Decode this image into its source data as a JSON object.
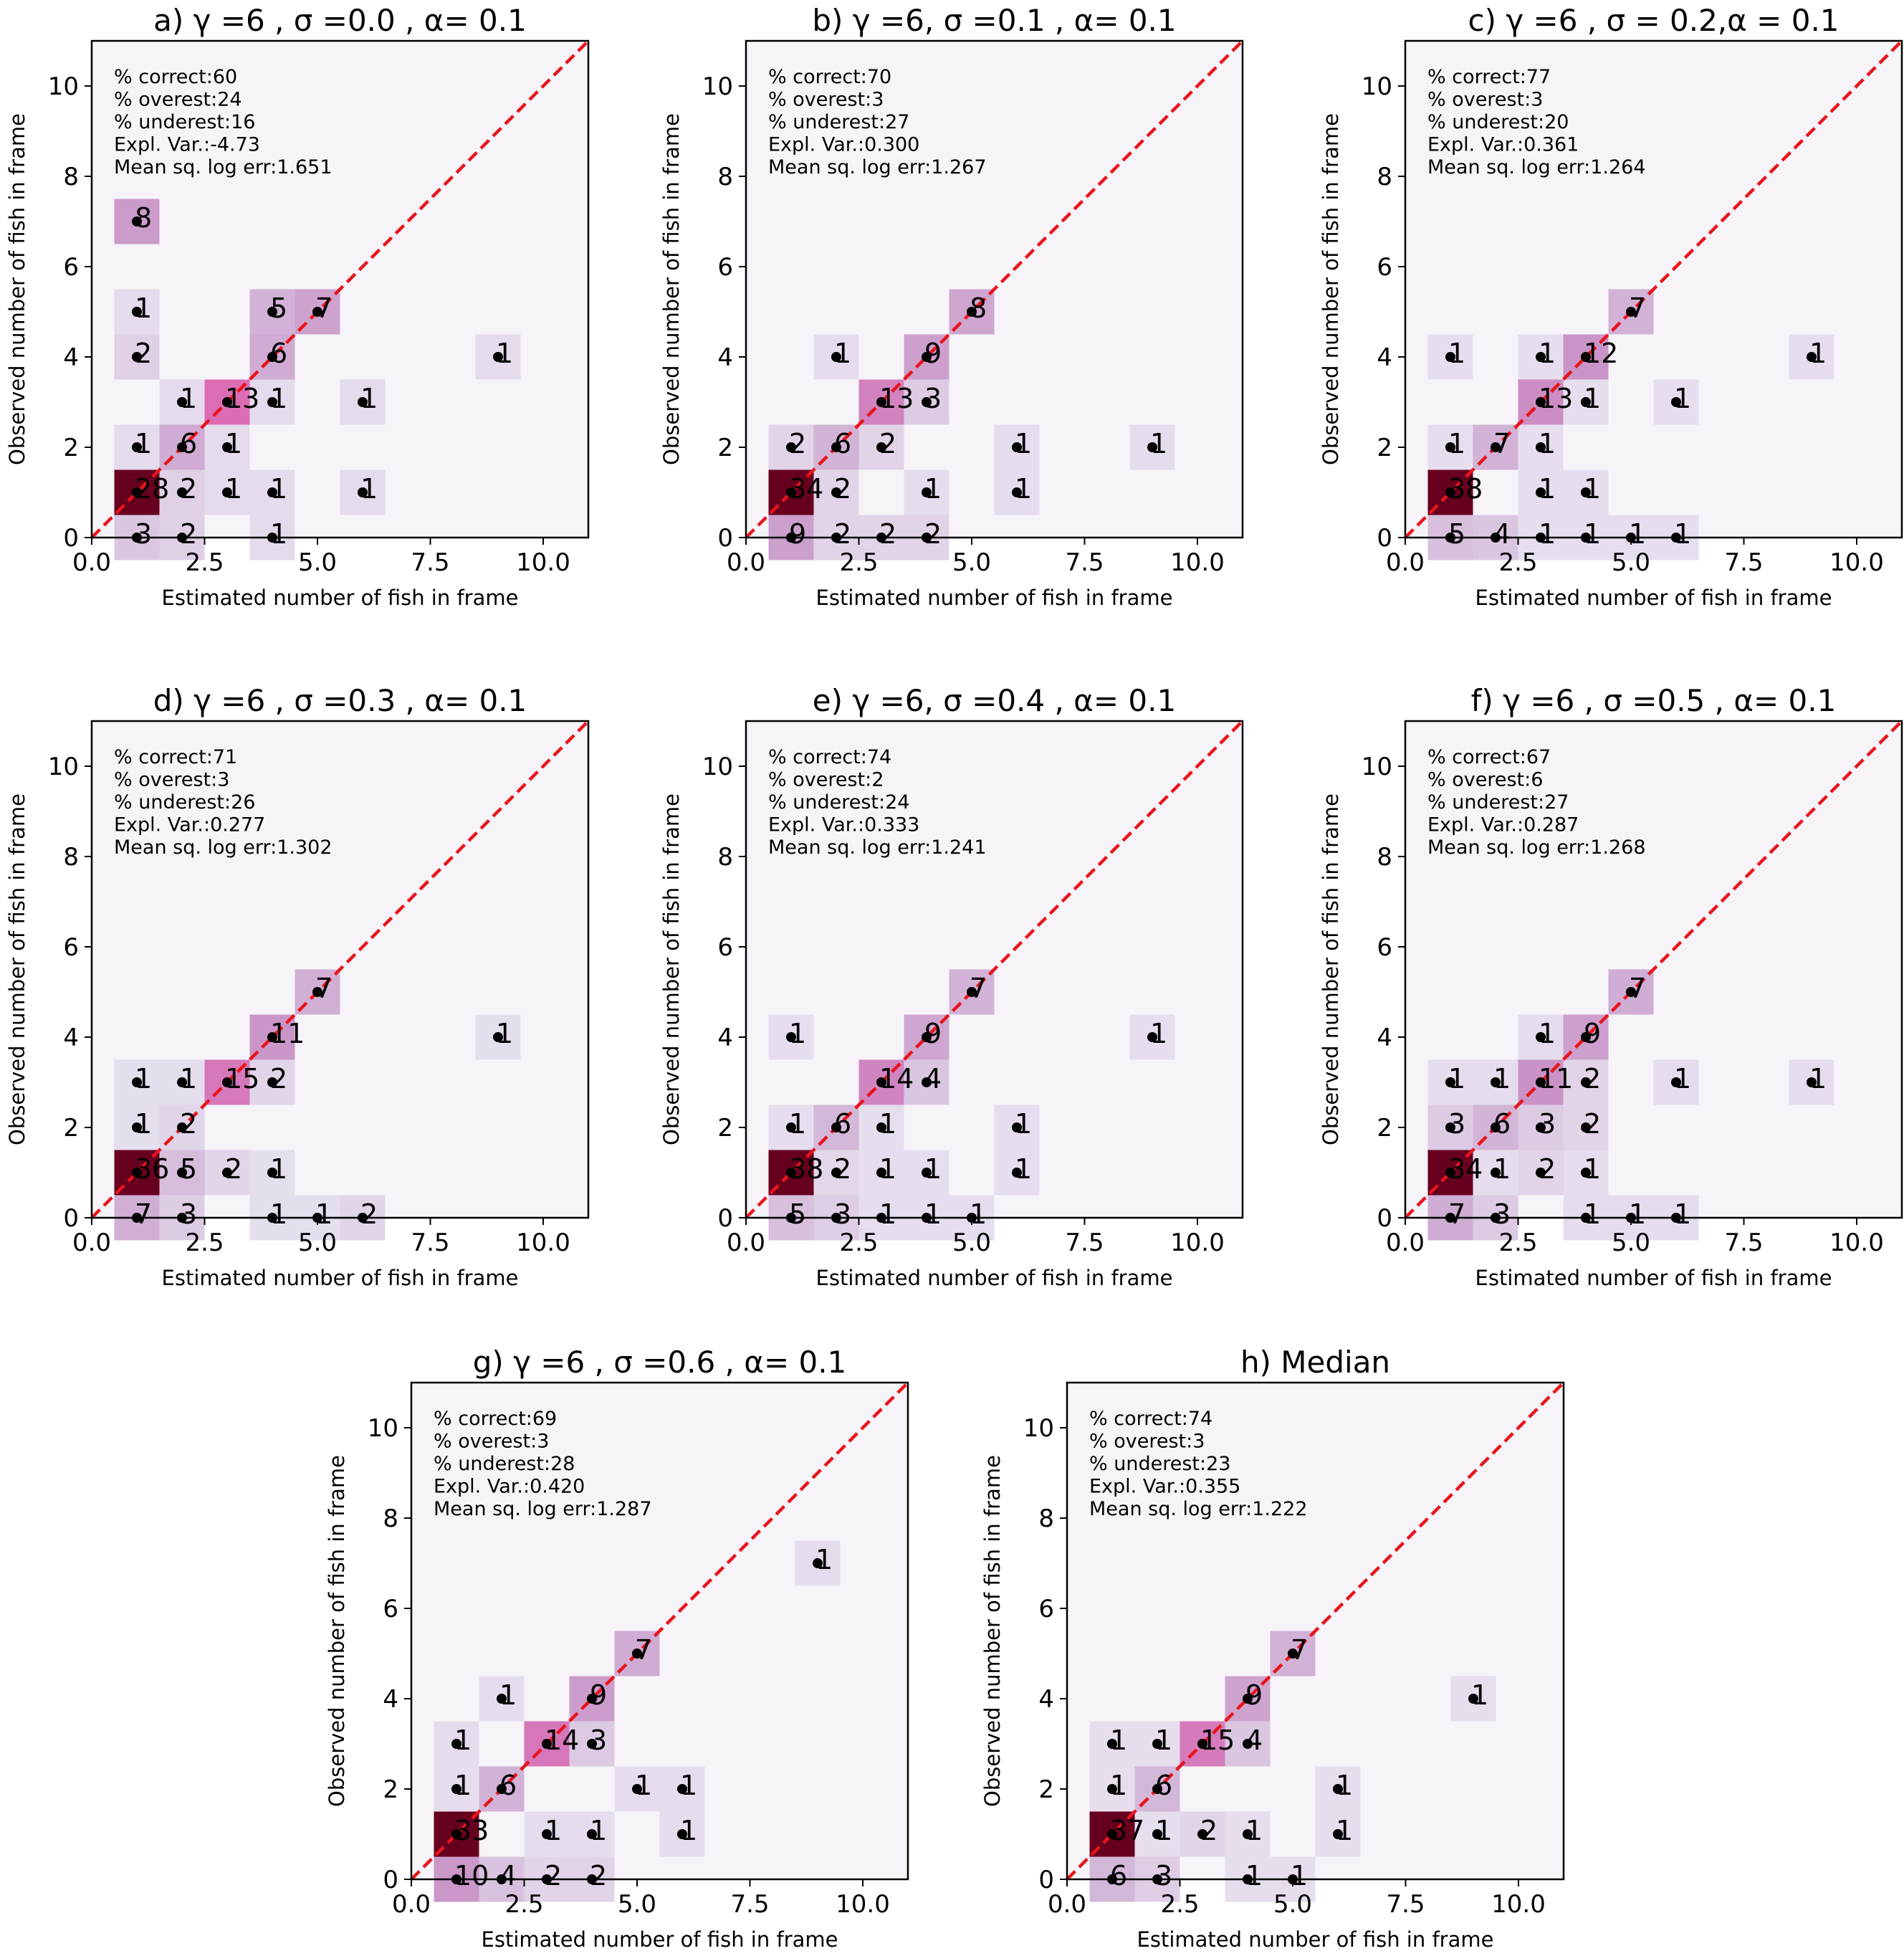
{
  "chart_data": [
    {
      "type": "heatmap",
      "title": "a) γ =6 , σ =0.0 , α= 0.1",
      "xlabel": "Estimated number of fish in frame",
      "ylabel": "Observed number of fish in frame",
      "xlim": [
        0,
        11
      ],
      "ylim": [
        0,
        11
      ],
      "xticks": [
        "0.0",
        "2.5",
        "5.0",
        "7.5",
        "10.0"
      ],
      "yticks": [
        "0",
        "2",
        "4",
        "6",
        "8",
        "10"
      ],
      "reference_line": "y = x",
      "stats": [
        "% correct:60",
        "% overest:24",
        "% underest:16",
        "Expl. Var.:-4.73",
        "Mean sq. log err:1.651"
      ],
      "cells": [
        [
          1,
          1,
          28
        ],
        [
          2,
          1,
          2
        ],
        [
          3,
          1,
          1
        ],
        [
          4,
          1,
          1
        ],
        [
          6,
          1,
          1
        ],
        [
          1,
          0,
          3
        ],
        [
          2,
          0,
          2
        ],
        [
          4,
          0,
          1
        ],
        [
          1,
          2,
          1
        ],
        [
          2,
          2,
          6
        ],
        [
          3,
          2,
          1
        ],
        [
          2,
          3,
          1
        ],
        [
          3,
          3,
          13
        ],
        [
          4,
          3,
          1
        ],
        [
          6,
          3,
          1
        ],
        [
          1,
          4,
          2
        ],
        [
          4,
          4,
          6
        ],
        [
          9,
          4,
          1
        ],
        [
          1,
          5,
          1
        ],
        [
          4,
          5,
          5
        ],
        [
          5,
          5,
          7
        ],
        [
          1,
          7,
          8
        ]
      ]
    },
    {
      "type": "heatmap",
      "title": "b) γ =6, σ =0.1 , α= 0.1",
      "xlabel": "Estimated number of fish in frame",
      "ylabel": "Observed number of fish in frame",
      "xlim": [
        0,
        11
      ],
      "ylim": [
        0,
        11
      ],
      "xticks": [
        "0.0",
        "2.5",
        "5.0",
        "7.5",
        "10.0"
      ],
      "yticks": [
        "0",
        "2",
        "4",
        "6",
        "8",
        "10"
      ],
      "reference_line": "y = x",
      "stats": [
        "% correct:70",
        "% overest:3",
        "% underest:27",
        "Expl. Var.:0.300",
        "Mean sq. log err:1.267"
      ],
      "cells": [
        [
          1,
          1,
          34
        ],
        [
          2,
          1,
          2
        ],
        [
          4,
          1,
          1
        ],
        [
          6,
          1,
          1
        ],
        [
          1,
          0,
          9
        ],
        [
          2,
          0,
          2
        ],
        [
          3,
          0,
          2
        ],
        [
          4,
          0,
          2
        ],
        [
          1,
          2,
          2
        ],
        [
          2,
          2,
          6
        ],
        [
          3,
          2,
          2
        ],
        [
          6,
          2,
          1
        ],
        [
          9,
          2,
          1
        ],
        [
          3,
          3,
          13
        ],
        [
          4,
          3,
          3
        ],
        [
          2,
          4,
          1
        ],
        [
          4,
          4,
          9
        ],
        [
          5,
          5,
          8
        ]
      ]
    },
    {
      "type": "heatmap",
      "title": "c) γ =6 , σ = 0.2,α = 0.1",
      "xlabel": "Estimated number of fish in frame",
      "ylabel": "Observed number of fish in frame",
      "xlim": [
        0,
        11
      ],
      "ylim": [
        0,
        11
      ],
      "xticks": [
        "0.0",
        "2.5",
        "5.0",
        "7.5",
        "10.0"
      ],
      "yticks": [
        "0",
        "2",
        "4",
        "6",
        "8",
        "10"
      ],
      "reference_line": "y = x",
      "stats": [
        "% correct:77",
        "% overest:3",
        "% underest:20",
        "Expl. Var.:0.361",
        "Mean sq. log err:1.264"
      ],
      "cells": [
        [
          1,
          1,
          38
        ],
        [
          3,
          1,
          1
        ],
        [
          4,
          1,
          1
        ],
        [
          1,
          0,
          5
        ],
        [
          2,
          0,
          4
        ],
        [
          3,
          0,
          1
        ],
        [
          4,
          0,
          1
        ],
        [
          5,
          0,
          1
        ],
        [
          6,
          0,
          1
        ],
        [
          1,
          2,
          1
        ],
        [
          2,
          2,
          7
        ],
        [
          3,
          2,
          1
        ],
        [
          3,
          3,
          13
        ],
        [
          4,
          3,
          1
        ],
        [
          6,
          3,
          1
        ],
        [
          1,
          4,
          1
        ],
        [
          3,
          4,
          1
        ],
        [
          4,
          4,
          12
        ],
        [
          9,
          4,
          1
        ],
        [
          5,
          5,
          7
        ]
      ]
    },
    {
      "type": "heatmap",
      "title": "d) γ =6 , σ =0.3 , α= 0.1",
      "xlabel": "Estimated number of fish in frame",
      "ylabel": "Observed number of fish in frame",
      "xlim": [
        0,
        11
      ],
      "ylim": [
        0,
        11
      ],
      "xticks": [
        "0.0",
        "2.5",
        "5.0",
        "7.5",
        "10.0"
      ],
      "yticks": [
        "0",
        "2",
        "4",
        "6",
        "8",
        "10"
      ],
      "reference_line": "y = x",
      "stats": [
        "% correct:71",
        "% overest:3",
        "% underest:26",
        "Expl. Var.:0.277",
        "Mean sq. log err:1.302"
      ],
      "cells": [
        [
          1,
          1,
          36
        ],
        [
          2,
          1,
          5
        ],
        [
          3,
          1,
          2
        ],
        [
          4,
          1,
          1
        ],
        [
          1,
          0,
          7
        ],
        [
          2,
          0,
          3
        ],
        [
          4,
          0,
          1
        ],
        [
          5,
          0,
          1
        ],
        [
          6,
          0,
          2
        ],
        [
          1,
          2,
          1
        ],
        [
          2,
          2,
          2
        ],
        [
          1,
          3,
          1
        ],
        [
          2,
          3,
          1
        ],
        [
          3,
          3,
          15
        ],
        [
          4,
          3,
          2
        ],
        [
          4,
          4,
          11
        ],
        [
          9,
          4,
          1
        ],
        [
          5,
          5,
          7
        ]
      ]
    },
    {
      "type": "heatmap",
      "title": "e) γ =6, σ =0.4 , α= 0.1",
      "xlabel": "Estimated number of fish in frame",
      "ylabel": "Observed number of fish in frame",
      "xlim": [
        0,
        11
      ],
      "ylim": [
        0,
        11
      ],
      "xticks": [
        "0.0",
        "2.5",
        "5.0",
        "7.5",
        "10.0"
      ],
      "yticks": [
        "0",
        "2",
        "4",
        "6",
        "8",
        "10"
      ],
      "reference_line": "y = x",
      "stats": [
        "% correct:74",
        "% overest:2",
        "% underest:24",
        "Expl. Var.:0.333",
        "Mean sq. log err:1.241"
      ],
      "cells": [
        [
          1,
          1,
          38
        ],
        [
          2,
          1,
          2
        ],
        [
          3,
          1,
          1
        ],
        [
          4,
          1,
          1
        ],
        [
          6,
          1,
          1
        ],
        [
          1,
          0,
          5
        ],
        [
          2,
          0,
          3
        ],
        [
          3,
          0,
          1
        ],
        [
          4,
          0,
          1
        ],
        [
          5,
          0,
          1
        ],
        [
          1,
          2,
          1
        ],
        [
          2,
          2,
          6
        ],
        [
          3,
          2,
          1
        ],
        [
          6,
          2,
          1
        ],
        [
          3,
          3,
          14
        ],
        [
          4,
          3,
          4
        ],
        [
          1,
          4,
          1
        ],
        [
          4,
          4,
          9
        ],
        [
          9,
          4,
          1
        ],
        [
          5,
          5,
          7
        ]
      ]
    },
    {
      "type": "heatmap",
      "title": "f) γ =6 , σ =0.5 , α= 0.1",
      "xlabel": "Estimated number of fish in frame",
      "ylabel": "Observed number of fish in frame",
      "xlim": [
        0,
        11
      ],
      "ylim": [
        0,
        11
      ],
      "xticks": [
        "0.0",
        "2.5",
        "5.0",
        "7.5",
        "10.0"
      ],
      "yticks": [
        "0",
        "2",
        "4",
        "6",
        "8",
        "10"
      ],
      "reference_line": "y = x",
      "stats": [
        "% correct:67",
        "% overest:6",
        "% underest:27",
        "Expl. Var.:0.287",
        "Mean sq. log err:1.268"
      ],
      "cells": [
        [
          1,
          1,
          34
        ],
        [
          2,
          1,
          1
        ],
        [
          3,
          1,
          2
        ],
        [
          4,
          1,
          1
        ],
        [
          1,
          0,
          7
        ],
        [
          2,
          0,
          3
        ],
        [
          4,
          0,
          1
        ],
        [
          5,
          0,
          1
        ],
        [
          6,
          0,
          1
        ],
        [
          1,
          2,
          3
        ],
        [
          2,
          2,
          6
        ],
        [
          3,
          2,
          3
        ],
        [
          4,
          2,
          2
        ],
        [
          1,
          3,
          1
        ],
        [
          2,
          3,
          1
        ],
        [
          3,
          3,
          11
        ],
        [
          4,
          3,
          2
        ],
        [
          6,
          3,
          1
        ],
        [
          9,
          3,
          1
        ],
        [
          3,
          4,
          1
        ],
        [
          4,
          4,
          9
        ],
        [
          5,
          5,
          7
        ]
      ]
    },
    {
      "type": "heatmap",
      "title": "g) γ =6 , σ =0.6 , α= 0.1",
      "xlabel": "Estimated number of fish in frame",
      "ylabel": "Observed number of fish in frame",
      "xlim": [
        0,
        11
      ],
      "ylim": [
        0,
        11
      ],
      "xticks": [
        "0.0",
        "2.5",
        "5.0",
        "7.5",
        "10.0"
      ],
      "yticks": [
        "0",
        "2",
        "4",
        "6",
        "8",
        "10"
      ],
      "reference_line": "y = x",
      "stats": [
        "% correct:69",
        "% overest:3",
        "% underest:28",
        "Expl. Var.:0.420",
        "Mean sq. log err:1.287"
      ],
      "cells": [
        [
          1,
          1,
          33
        ],
        [
          3,
          1,
          1
        ],
        [
          4,
          1,
          1
        ],
        [
          6,
          1,
          1
        ],
        [
          1,
          0,
          10
        ],
        [
          2,
          0,
          4
        ],
        [
          3,
          0,
          2
        ],
        [
          4,
          0,
          2
        ],
        [
          1,
          2,
          1
        ],
        [
          2,
          2,
          6
        ],
        [
          5,
          2,
          1
        ],
        [
          6,
          2,
          1
        ],
        [
          1,
          3,
          1
        ],
        [
          3,
          3,
          14
        ],
        [
          4,
          3,
          3
        ],
        [
          2,
          4,
          1
        ],
        [
          4,
          4,
          9
        ],
        [
          5,
          5,
          7
        ],
        [
          9,
          7,
          1
        ]
      ]
    },
    {
      "type": "heatmap",
      "title": "h) Median",
      "xlabel": "Estimated number of fish in frame",
      "ylabel": "Observed number of fish in frame",
      "xlim": [
        0,
        11
      ],
      "ylim": [
        0,
        11
      ],
      "xticks": [
        "0.0",
        "2.5",
        "5.0",
        "7.5",
        "10.0"
      ],
      "yticks": [
        "0",
        "2",
        "4",
        "6",
        "8",
        "10"
      ],
      "reference_line": "y = x",
      "stats": [
        "% correct:74",
        "% overest:3",
        "% underest:23",
        "Expl. Var.:0.355",
        "Mean sq. log err:1.222"
      ],
      "cells": [
        [
          1,
          1,
          37
        ],
        [
          2,
          1,
          1
        ],
        [
          3,
          1,
          2
        ],
        [
          4,
          1,
          1
        ],
        [
          6,
          1,
          1
        ],
        [
          1,
          0,
          6
        ],
        [
          2,
          0,
          3
        ],
        [
          4,
          0,
          1
        ],
        [
          5,
          0,
          1
        ],
        [
          1,
          2,
          1
        ],
        [
          2,
          2,
          6
        ],
        [
          6,
          2,
          1
        ],
        [
          1,
          3,
          1
        ],
        [
          2,
          3,
          1
        ],
        [
          3,
          3,
          15
        ],
        [
          4,
          3,
          4
        ],
        [
          4,
          4,
          9
        ],
        [
          9,
          4,
          1
        ],
        [
          5,
          5,
          7
        ]
      ]
    }
  ]
}
